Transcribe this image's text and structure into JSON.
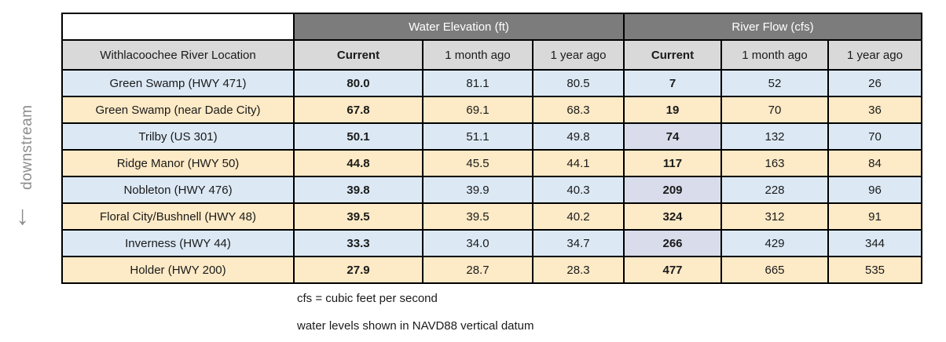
{
  "chart_data": {
    "type": "table",
    "location_column_header": "Withlacoochee River Location",
    "column_groups": [
      {
        "label": "Water Elevation (ft)",
        "columns": [
          "Current",
          "1 month ago",
          "1 year ago"
        ]
      },
      {
        "label": "River Flow (cfs)",
        "columns": [
          "Current",
          "1 month ago",
          "1 year ago"
        ]
      }
    ],
    "rows": [
      {
        "location": "Green Swamp (HWY 471)",
        "water_elevation_ft": [
          "80.0",
          "81.1",
          "80.5"
        ],
        "river_flow_cfs": [
          7,
          52,
          26
        ],
        "tint": "blue",
        "flow_current_highlighted": false
      },
      {
        "location": "Green Swamp (near Dade City)",
        "water_elevation_ft": [
          "67.8",
          "69.1",
          "68.3"
        ],
        "river_flow_cfs": [
          19,
          70,
          36
        ],
        "tint": "cream",
        "flow_current_highlighted": false
      },
      {
        "location": "Trilby (US 301)",
        "water_elevation_ft": [
          "50.1",
          "51.1",
          "49.8"
        ],
        "river_flow_cfs": [
          74,
          132,
          70
        ],
        "tint": "blue",
        "flow_current_highlighted": true
      },
      {
        "location": "Ridge Manor (HWY 50)",
        "water_elevation_ft": [
          "44.8",
          "45.5",
          "44.1"
        ],
        "river_flow_cfs": [
          117,
          163,
          84
        ],
        "tint": "cream",
        "flow_current_highlighted": false
      },
      {
        "location": "Nobleton (HWY 476)",
        "water_elevation_ft": [
          "39.8",
          "39.9",
          "40.3"
        ],
        "river_flow_cfs": [
          209,
          228,
          96
        ],
        "tint": "blue",
        "flow_current_highlighted": true
      },
      {
        "location": "Floral City/Bushnell (HWY 48)",
        "water_elevation_ft": [
          "39.5",
          "39.5",
          "40.2"
        ],
        "river_flow_cfs": [
          324,
          312,
          91
        ],
        "tint": "cream",
        "flow_current_highlighted": false
      },
      {
        "location": "Inverness (HWY 44)",
        "water_elevation_ft": [
          "33.3",
          "34.0",
          "34.7"
        ],
        "river_flow_cfs": [
          266,
          429,
          344
        ],
        "tint": "blue",
        "flow_current_highlighted": true
      },
      {
        "location": "Holder (HWY 200)",
        "water_elevation_ft": [
          "27.9",
          "28.7",
          "28.3"
        ],
        "river_flow_cfs": [
          477,
          665,
          535
        ],
        "tint": "cream",
        "flow_current_highlighted": false
      }
    ]
  },
  "annotations": {
    "downstream_label": "downstream",
    "arrow_glyph": "↓"
  },
  "footnotes": [
    "cfs = cubic feet per second",
    "water levels shown in NAVD88 vertical datum"
  ],
  "colors": {
    "group_header_bg": "#7c7c7c",
    "group_header_text": "#ffffff",
    "column_header_bg": "#d9d9d9",
    "row_blue": "#dce9f5",
    "row_cream": "#fdeac6",
    "flow_current_highlight": "#d9dcea",
    "border": "#000000",
    "annotation_gray": "#8c8c8c"
  }
}
